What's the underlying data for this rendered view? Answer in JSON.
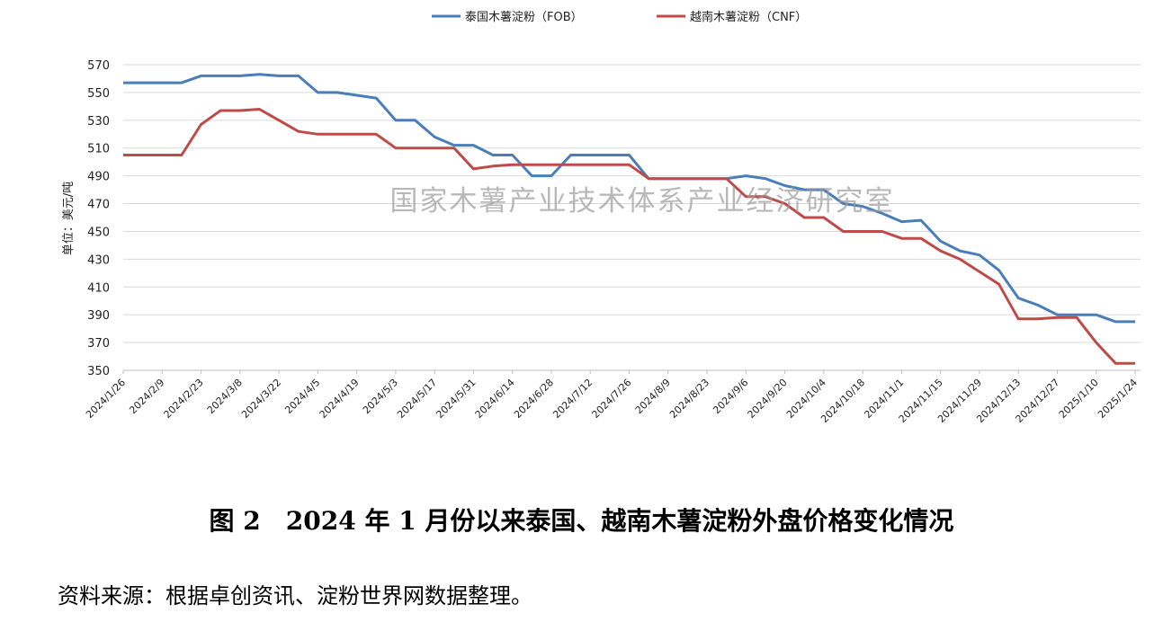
{
  "caption": "图 2　2024 年 1 月份以来泰国、越南木薯淀粉外盘价格变化情况",
  "source_note": "资料来源：根据卓创资讯、淀粉世界网数据整理。",
  "watermark": "国家木薯产业技术体系产业经济研究室",
  "chart_data": {
    "type": "line",
    "ylabel": "单位：美元/吨",
    "ylim": [
      350,
      570
    ],
    "yticks": [
      350,
      370,
      390,
      410,
      430,
      450,
      470,
      490,
      510,
      530,
      550,
      570
    ],
    "xtick_labels": [
      "2024/1/26",
      "2024/2/9",
      "2024/2/23",
      "2024/3/8",
      "2024/3/22",
      "2024/4/5",
      "2024/4/19",
      "2024/5/3",
      "2024/5/17",
      "2024/5/31",
      "2024/6/14",
      "2024/6/28",
      "2024/7/12",
      "2024/7/26",
      "2024/8/9",
      "2024/8/23",
      "2024/9/6",
      "2024/9/20",
      "2024/10/4",
      "2024/10/18",
      "2024/11/1",
      "2024/11/15",
      "2024/11/29",
      "2024/12/13",
      "2024/12/27",
      "2025/1/10",
      "2025/1/24"
    ],
    "grid": true,
    "legend_position": "top",
    "series": [
      {
        "name": "泰国木薯淀粉（FOB）",
        "color": "#4a7ebb",
        "values": [
          557,
          557,
          557,
          557,
          562,
          562,
          562,
          563,
          562,
          562,
          550,
          550,
          548,
          546,
          530,
          530,
          518,
          512,
          512,
          505,
          505,
          490,
          490,
          505,
          505,
          505,
          505,
          488,
          488,
          488,
          488,
          488,
          490,
          488,
          483,
          480,
          480,
          470,
          468,
          463,
          457,
          458,
          443,
          436,
          433,
          422,
          402,
          397,
          390,
          390,
          390,
          385,
          385
        ]
      },
      {
        "name": "越南木薯淀粉（CNF）",
        "color": "#be4b48",
        "values": [
          505,
          505,
          505,
          505,
          527,
          537,
          537,
          538,
          530,
          522,
          520,
          520,
          520,
          520,
          510,
          510,
          510,
          510,
          495,
          497,
          498,
          498,
          498,
          498,
          498,
          498,
          498,
          488,
          488,
          488,
          488,
          488,
          475,
          475,
          470,
          460,
          460,
          450,
          450,
          450,
          445,
          445,
          436,
          430,
          421,
          412,
          387,
          387,
          388,
          388,
          370,
          355,
          355
        ]
      }
    ]
  }
}
